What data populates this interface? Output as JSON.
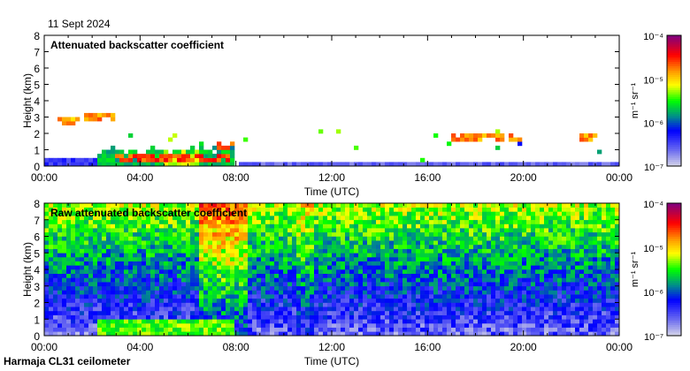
{
  "date": "11 Sept 2024",
  "footer": "Harmaja CL31 ceilometer",
  "colors": {
    "low": "#d8d8e8",
    "blue": "#0000ff",
    "green": "#00ff00",
    "yellow": "#ffff00",
    "red": "#ff0000",
    "high": "#800080"
  },
  "chart_data": [
    {
      "type": "heatmap",
      "title": "Attenuated backscatter coefficient",
      "xlabel": "Time (UTC)",
      "ylabel": "Height (km)",
      "xlim_hours": [
        0,
        24
      ],
      "ylim": [
        0,
        8
      ],
      "xticks": [
        "00:00",
        "04:00",
        "08:00",
        "12:00",
        "16:00",
        "20:00",
        "00:00"
      ],
      "yticks": [
        "0",
        "1",
        "2",
        "3",
        "4",
        "5",
        "6",
        "7",
        "8"
      ],
      "colorbar": {
        "label": "m⁻¹ sr⁻¹",
        "scale": "log",
        "range": [
          1e-07,
          0.0001
        ],
        "ticks": [
          "10⁻⁷",
          "10⁻⁶",
          "10⁻⁵",
          "10⁻⁴"
        ]
      },
      "features": [
        {
          "kind": "boundary_layer",
          "t": [
            0,
            2.3
          ],
          "top_km": 0.5,
          "log_beta": -6.4
        },
        {
          "kind": "aerosol",
          "t": [
            2.3,
            8.0
          ],
          "top_km": 1.0,
          "log_beta": -5.7
        },
        {
          "kind": "aerosol",
          "t": [
            5.0,
            6.5
          ],
          "top_km": 0.9,
          "log_beta": -5.2
        },
        {
          "kind": "boundary_layer",
          "t": [
            8.2,
            24
          ],
          "top_km": 0.3,
          "log_beta": -6.6
        },
        {
          "kind": "cloud",
          "t": [
            0.5,
            1.5
          ],
          "base_km": 2.8,
          "log_beta": -4.9
        },
        {
          "kind": "cloud",
          "t": [
            1.7,
            2.9
          ],
          "base_km": 3.0,
          "log_beta": -4.8
        },
        {
          "kind": "cloud",
          "t": [
            3.0,
            8.0
          ],
          "base_km": 0.5,
          "log_beta": -4.6
        },
        {
          "kind": "cloud",
          "t": [
            7.0,
            8.0
          ],
          "base_km": 1.3,
          "log_beta": -4.7
        },
        {
          "kind": "cloud",
          "t": [
            17.0,
            18.0
          ],
          "base_km": 1.8,
          "log_beta": -4.8
        },
        {
          "kind": "cloud",
          "t": [
            18.0,
            19.6
          ],
          "base_km": 1.7,
          "log_beta": -4.8
        },
        {
          "kind": "cloud",
          "t": [
            19.6,
            20.0
          ],
          "base_km": 1.6,
          "log_beta": -4.8
        },
        {
          "kind": "cloud",
          "t": [
            22.4,
            23.0
          ],
          "base_km": 1.7,
          "log_beta": -4.8
        }
      ]
    },
    {
      "type": "heatmap",
      "title": "Raw attenuated backscatter coefficient",
      "xlabel": "Time (UTC)",
      "ylabel": "Height (km)",
      "xlim_hours": [
        0,
        24
      ],
      "ylim": [
        0,
        8
      ],
      "xticks": [
        "00:00",
        "04:00",
        "08:00",
        "12:00",
        "16:00",
        "20:00",
        "00:00"
      ],
      "yticks": [
        "0",
        "1",
        "2",
        "3",
        "4",
        "5",
        "6",
        "7",
        "8"
      ],
      "colorbar": {
        "label": "m⁻¹ sr⁻¹",
        "scale": "log",
        "range": [
          1e-07,
          0.0001
        ],
        "ticks": [
          "10⁻⁷",
          "10⁻⁶",
          "10⁻⁵",
          "10⁻⁴"
        ]
      },
      "noise": {
        "base_log_beta": -6.6,
        "per_km": 0.17,
        "high_noise_t": [
          6.5,
          8.5
        ]
      }
    }
  ]
}
